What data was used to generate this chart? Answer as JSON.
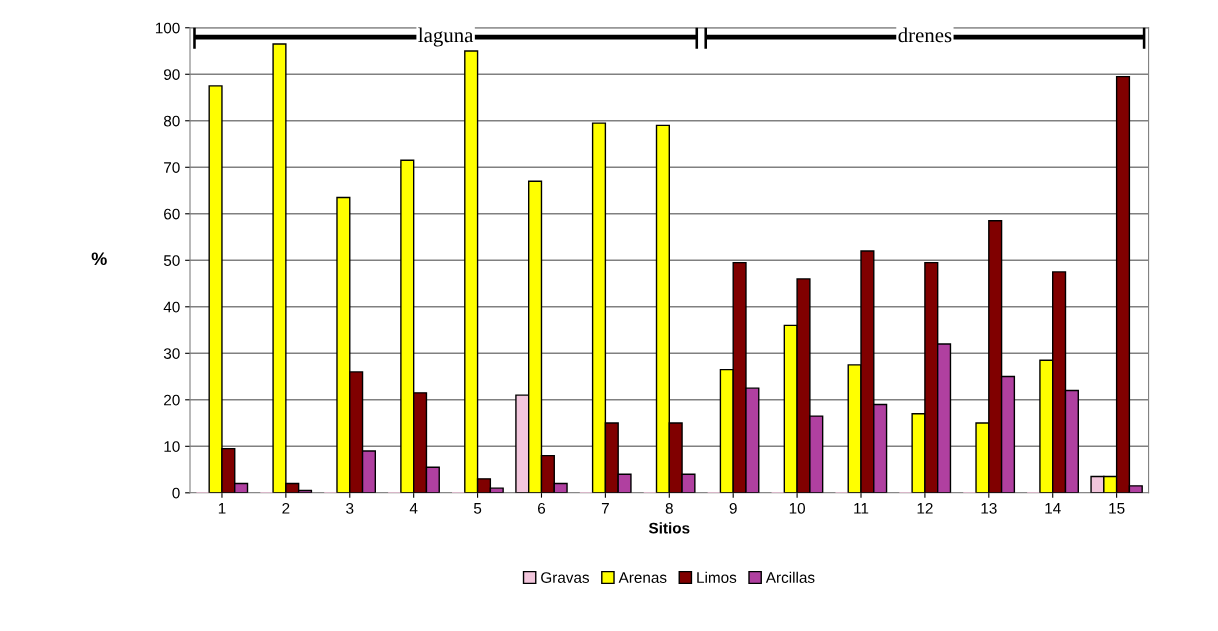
{
  "chart_data": {
    "type": "bar",
    "xlabel": "Sitios",
    "ylabel": "%",
    "categories": [
      "1",
      "2",
      "3",
      "4",
      "5",
      "6",
      "7",
      "8",
      "9",
      "10",
      "11",
      "12",
      "13",
      "14",
      "15"
    ],
    "series": [
      {
        "name": "Gravas",
        "color": "#f2c6dc",
        "values": [
          0,
          0,
          0,
          0,
          0,
          21,
          0,
          0,
          0,
          0,
          0,
          0,
          0,
          0,
          3.5
        ]
      },
      {
        "name": "Arenas",
        "color": "#ffff00",
        "values": [
          87.5,
          96.5,
          63.5,
          71.5,
          95,
          67,
          79.5,
          79,
          26.5,
          36,
          27.5,
          17,
          15,
          28.5,
          3.5
        ]
      },
      {
        "name": "Limos",
        "color": "#800000",
        "values": [
          9.5,
          2,
          26,
          21.5,
          3,
          8,
          15,
          15,
          49.5,
          46,
          52,
          49.5,
          58.5,
          47.5,
          89.5
        ]
      },
      {
        "name": "Arcillas",
        "color": "#b040a0",
        "values": [
          2,
          0.5,
          9,
          5.5,
          1,
          2,
          4,
          4,
          22.5,
          16.5,
          19,
          32,
          25,
          22,
          1.5
        ]
      }
    ],
    "ylim": [
      0,
      100
    ],
    "yticks": [
      0,
      10,
      20,
      30,
      40,
      50,
      60,
      70,
      80,
      90,
      100
    ],
    "grid": "y",
    "legend": "bottom",
    "annotations": [
      "laguna",
      "drenes"
    ]
  }
}
